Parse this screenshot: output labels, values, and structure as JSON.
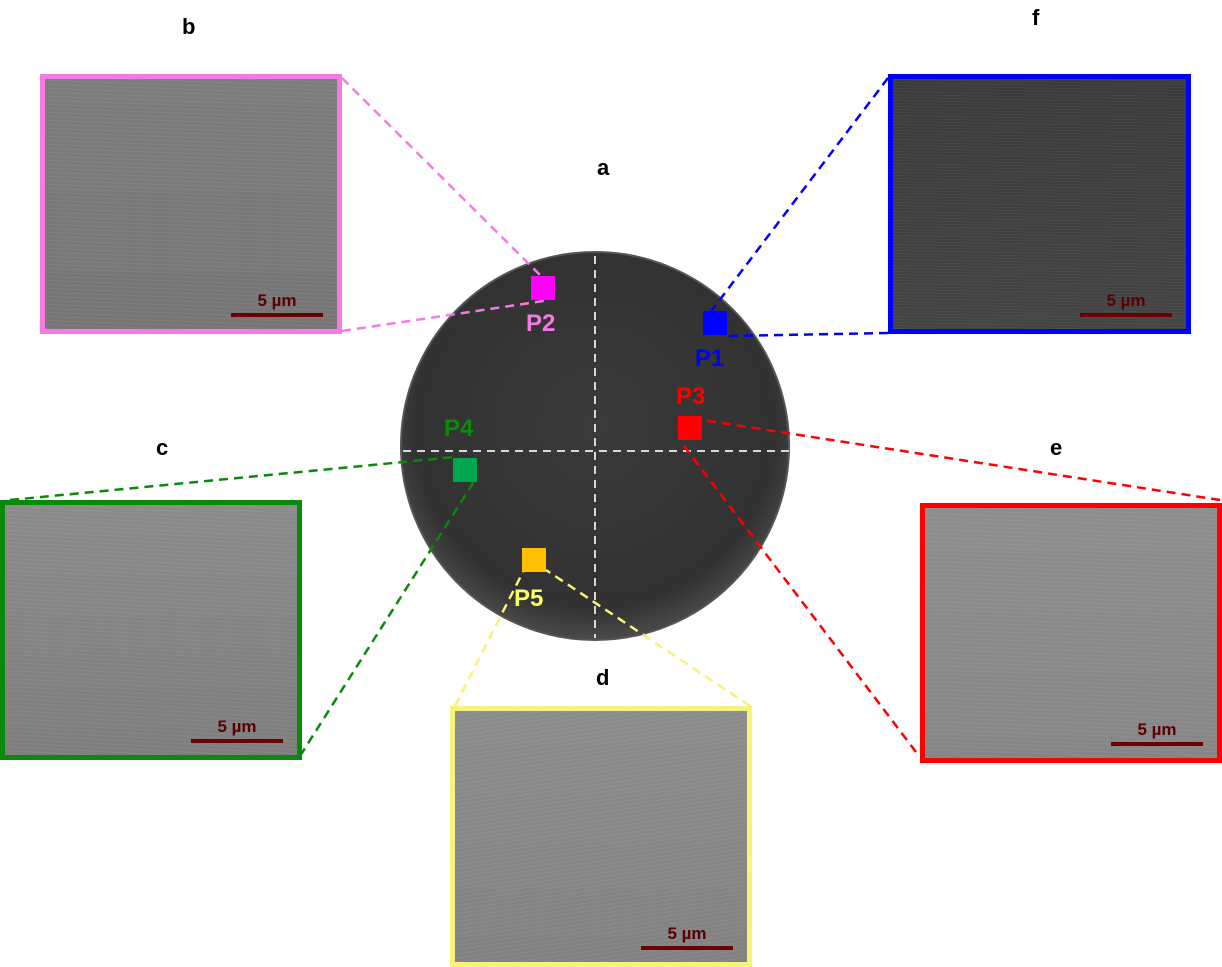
{
  "panels": {
    "a": "a",
    "b": "b",
    "c": "c",
    "d": "d",
    "e": "e",
    "f": "f"
  },
  "points": {
    "p1": "P1",
    "p2": "P2",
    "p3": "P3",
    "p4": "P4",
    "p5": "P5"
  },
  "scale_bar": "5 µm",
  "colors": {
    "p1": "#0000ff",
    "p2": "#ff00ff",
    "p2_frame": "#f57ae6",
    "p3": "#ff0000",
    "p4": "#00a650",
    "p4_frame": "#0a8a0a",
    "p5": "#ffc000",
    "p5_frame": "#f7f27a",
    "p5_label": "#ffff66"
  }
}
